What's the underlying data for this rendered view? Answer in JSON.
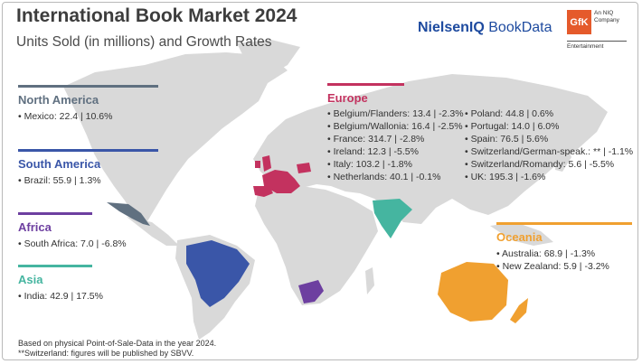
{
  "header": {
    "title": "International Book Market 2024",
    "subtitle": "Units Sold (in millions) and Growth Rates",
    "brand_bold": "NielsenIQ",
    "brand_light": " BookData",
    "gfk_logo": "GfK",
    "gfk_line1": "An NIQ",
    "gfk_line2": "Company",
    "gfk_sub": "Entertainment"
  },
  "colors": {
    "north_america": "#607080",
    "south_america": "#3a56a8",
    "africa": "#6d3fa0",
    "asia": "#45b5a0",
    "europe": "#c3325f",
    "oceania": "#f0a030",
    "land": "#d9d9d9"
  },
  "chart_data": {
    "type": "table",
    "title": "International Book Market 2024",
    "subtitle": "Units Sold (in millions) and Growth Rates",
    "regions": [
      {
        "name": "North America",
        "entries": [
          {
            "country": "Mexico",
            "units": 22.4,
            "growth": 10.6,
            "label": "Mexico: 22.4 | 10.6%"
          }
        ]
      },
      {
        "name": "South America",
        "entries": [
          {
            "country": "Brazil",
            "units": 55.9,
            "growth": 1.3,
            "label": "Brazil: 55.9 | 1.3%"
          }
        ]
      },
      {
        "name": "Africa",
        "entries": [
          {
            "country": "South Africa",
            "units": 7.0,
            "growth": -6.8,
            "label": "South Africa: 7.0 | -6.8%"
          }
        ]
      },
      {
        "name": "Asia",
        "entries": [
          {
            "country": "India",
            "units": 42.9,
            "growth": 17.5,
            "label": "India: 42.9 | 17.5%"
          }
        ]
      },
      {
        "name": "Europe",
        "entries": [
          {
            "country": "Belgium/Flanders",
            "units": 13.4,
            "growth": -2.3,
            "label": "Belgium/Flanders: 13.4 | -2.3%"
          },
          {
            "country": "Belgium/Wallonia",
            "units": 16.4,
            "growth": -2.5,
            "label": "Belgium/Wallonia: 16.4 | -2.5%"
          },
          {
            "country": "France",
            "units": 314.7,
            "growth": -2.8,
            "label": "France: 314.7 | -2.8%"
          },
          {
            "country": "Ireland",
            "units": 12.3,
            "growth": -5.5,
            "label": "Ireland: 12.3 | -5.5%"
          },
          {
            "country": "Italy",
            "units": 103.2,
            "growth": -1.8,
            "label": "Italy: 103.2 | -1.8%"
          },
          {
            "country": "Netherlands",
            "units": 40.1,
            "growth": -0.1,
            "label": "Netherlands: 40.1 | -0.1%"
          },
          {
            "country": "Poland",
            "units": 44.8,
            "growth": 0.6,
            "label": "Poland: 44.8 | 0.6%"
          },
          {
            "country": "Portugal",
            "units": 14.0,
            "growth": 6.0,
            "label": "Portugal: 14.0 | 6.0%"
          },
          {
            "country": "Spain",
            "units": 76.5,
            "growth": 5.6,
            "label": "Spain: 76.5 | 5.6%"
          },
          {
            "country": "Switzerland/German-speak.",
            "units": null,
            "growth": -1.1,
            "label": "Switzerland/German-speak.: ** | -1.1%"
          },
          {
            "country": "Switzerland/Romandy",
            "units": 5.6,
            "growth": -5.5,
            "label": "Switzerland/Romandy: 5.6 | -5.5%"
          },
          {
            "country": "UK",
            "units": 195.3,
            "growth": -1.6,
            "label": "UK: 195.3 | -1.6%"
          }
        ]
      },
      {
        "name": "Oceania",
        "entries": [
          {
            "country": "Australia",
            "units": 68.9,
            "growth": -1.3,
            "label": "Australia: 68.9 | -1.3%"
          },
          {
            "country": "New Zealand",
            "units": 5.9,
            "growth": -3.2,
            "label": "New Zealand: 5.9 | -3.2%"
          }
        ]
      }
    ]
  },
  "notes": {
    "line1": "Based on physical Point-of-Sale-Data in the year 2024.",
    "line2": "**Switzerland: figures will be published by SBVV."
  }
}
